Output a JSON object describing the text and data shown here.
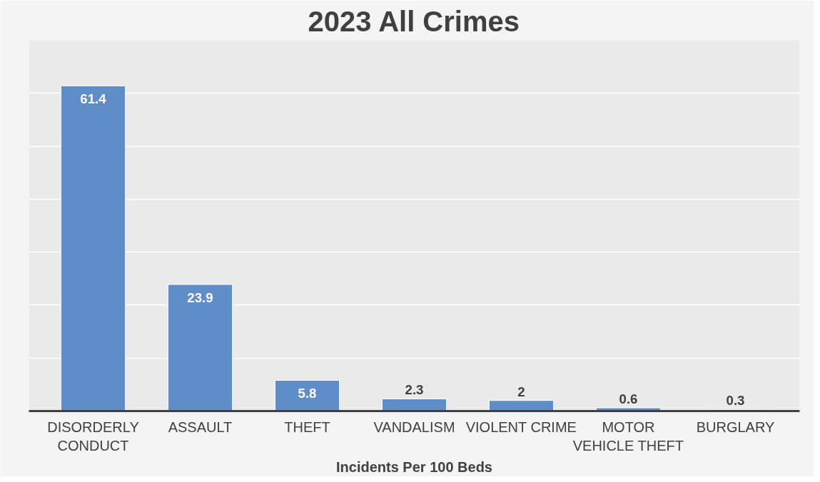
{
  "chart_data": {
    "type": "bar",
    "title": "2023 All Crimes",
    "xlabel": "Incidents Per 100 Beds",
    "categories": [
      "DISORDERLY CONDUCT",
      "ASSAULT",
      "THEFT",
      "VANDALISM",
      "VIOLENT CRIME",
      "MOTOR VEHICLE THEFT",
      "BURGLARY"
    ],
    "values": [
      61.4,
      23.9,
      5.8,
      2.3,
      2,
      0.6,
      0.3
    ],
    "color": "#5f8dc8",
    "ylim": [
      0,
      70
    ],
    "yticks": [
      {
        "value": 0,
        "label": null
      },
      {
        "value": 10,
        "label": null
      },
      {
        "value": 20,
        "label": null
      },
      {
        "value": 30,
        "label": null
      },
      {
        "value": 40,
        "label": null
      },
      {
        "value": 50,
        "label": null
      },
      {
        "value": 60,
        "label": null
      },
      {
        "value": 70,
        "label": null
      }
    ],
    "grid": "y",
    "tick_labels": "x",
    "data_labels": true
  }
}
